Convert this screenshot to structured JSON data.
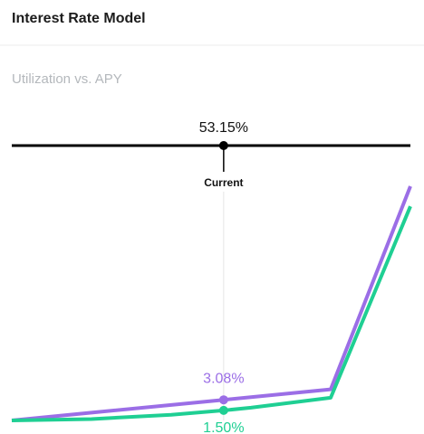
{
  "header": {
    "title": "Interest Rate Model"
  },
  "chart_data": {
    "type": "line",
    "subtitle": "Utilization vs. APY",
    "current": {
      "value": 53.15,
      "value_label": "53.15%",
      "label": "Current"
    },
    "x": [
      0,
      20,
      40,
      53.15,
      60,
      80,
      100
    ],
    "xlim": [
      0,
      100
    ],
    "ylim": [
      0,
      40
    ],
    "series": [
      {
        "color": "#9b6ee6",
        "values": [
          0,
          1.16,
          2.32,
          3.08,
          3.48,
          4.64,
          35
        ],
        "value_labels": [
          null,
          null,
          null,
          "3.08%",
          null,
          null,
          null
        ]
      },
      {
        "color": "#1fcf93",
        "values": [
          0,
          0.21,
          0.85,
          1.5,
          1.91,
          3.4,
          32
        ],
        "value_labels": [
          null,
          null,
          null,
          "1.50%",
          null,
          null,
          null
        ]
      }
    ]
  }
}
